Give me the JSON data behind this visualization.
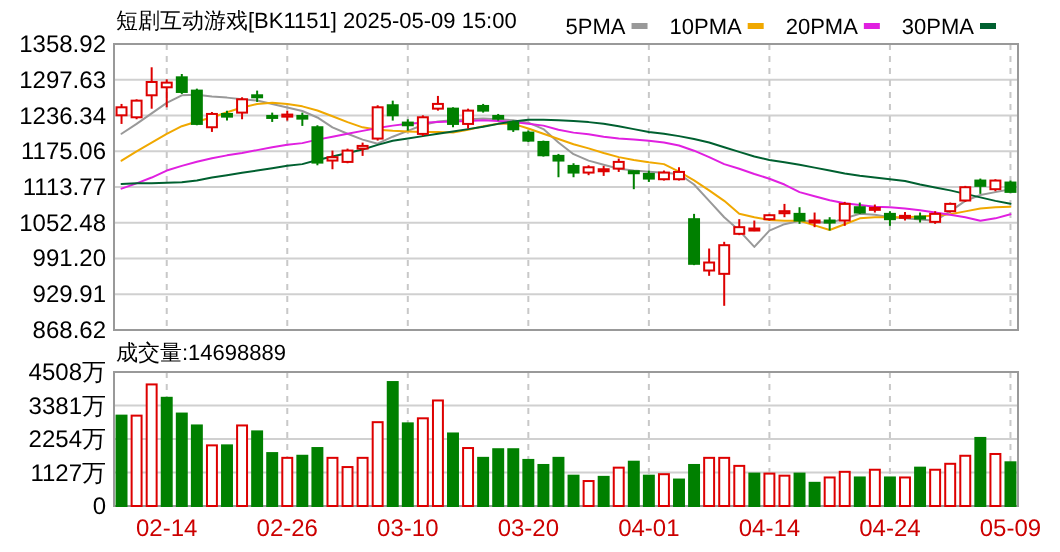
{
  "chart_data": [
    {
      "type": "candlestick",
      "title": "短剧互动游戏[BK1151] 2025-05-09 15:00",
      "legend": "top right",
      "grid": true,
      "tick_labels": "y",
      "categories": [
        null,
        null,
        null,
        null,
        null,
        null,
        null,
        null,
        null,
        null,
        null,
        null,
        null,
        null,
        null,
        null,
        null,
        null,
        null,
        null,
        null,
        null,
        null,
        null,
        null,
        null,
        null,
        null,
        null,
        null,
        null,
        null,
        null,
        null,
        null,
        null,
        null,
        null,
        null,
        null,
        null,
        null,
        null,
        null,
        null,
        null,
        null,
        null,
        null,
        null,
        null,
        null,
        null,
        null,
        null,
        null,
        null,
        null,
        null,
        null
      ],
      "ylim": [
        868.62,
        1358.92
      ],
      "yticks": [
        868.62,
        929.91,
        {
          "value": 991.2,
          "label": "991.20"
        },
        1052.48,
        1113.77,
        1175.06,
        1236.34,
        1297.63,
        1358.92
      ],
      "ohlc": [
        [
          1236.7,
          1256.2,
          1221.9,
          1250.4
        ],
        [
          1233.3,
          1264.1,
          1229.9,
          1261.8
        ],
        [
          1271,
          1319,
          1248,
          1293.8
        ],
        [
          1284.7,
          1298.4,
          1250.4,
          1292.7
        ],
        [
          1301.8,
          1307.5,
          1273.3,
          1276.7
        ],
        [
          1279,
          1282.4,
          1219.6,
          1221.9
        ],
        [
          1216.2,
          1242.4,
          1208.2,
          1239
        ],
        [
          1239,
          1244.7,
          1227.6,
          1234.4
        ],
        [
          1241.3,
          1267.6,
          1229.9,
          1264.1
        ],
        [
          1271,
          1279,
          1259.6,
          1267.6
        ],
        [
          1235.6,
          1241.3,
          1225.3,
          1232.2
        ],
        [
          1234.4,
          1244.7,
          1227.6,
          1237.9
        ],
        [
          1235.6,
          1241.3,
          1218.5,
          1231
        ],
        [
          1216.2,
          1219.6,
          1151,
          1155.6
        ],
        [
          1159.1,
          1176.2,
          1144.2,
          1164.8
        ],
        [
          1156.8,
          1179.6,
          1154.5,
          1176.2
        ],
        [
          1179.6,
          1189.9,
          1167.1,
          1184.2
        ],
        [
          1196.8,
          1253.9,
          1193.3,
          1250.4
        ],
        [
          1253.9,
          1261.8,
          1227.6,
          1236.7
        ],
        [
          1224.2,
          1229.9,
          1210.5,
          1219.6
        ],
        [
          1204.8,
          1236.7,
          1201.3,
          1233.3
        ],
        [
          1248.1,
          1269.9,
          1244.7,
          1256.2
        ],
        [
          1248.1,
          1250.4,
          1216.2,
          1221.9
        ],
        [
          1221.9,
          1248.1,
          1213.9,
          1244.7
        ],
        [
          1252.7,
          1256.2,
          1241.3,
          1244.7
        ],
        [
          1235.6,
          1239,
          1227.6,
          1231
        ],
        [
          1224.2,
          1227.6,
          1208.2,
          1212.7
        ],
        [
          1207,
          1210.5,
          1191,
          1193.3
        ],
        [
          1191,
          1193.3,
          1165.9,
          1168.2
        ],
        [
          1167.1,
          1170.5,
          1130.5,
          1159.1
        ],
        [
          1149.9,
          1154.5,
          1130.5,
          1138.5
        ],
        [
          1138.5,
          1151,
          1134,
          1147.6
        ],
        [
          1140.8,
          1149.9,
          1132.8,
          1144.2
        ],
        [
          1145.3,
          1162.5,
          1139.6,
          1156.8
        ],
        [
          1140.8,
          1142,
          1110,
          1137.4
        ],
        [
          1136.2,
          1142,
          1122.5,
          1128.2
        ],
        [
          1127.1,
          1142,
          1124.8,
          1138.5
        ],
        [
          1127.1,
          1147.6,
          1124.8,
          1139.6
        ],
        [
          1058.6,
          1067.7,
          979.8,
          982.1
        ],
        [
          970.6,
          1008.3,
          961.5,
          984.3
        ],
        [
          964.9,
          1019.8,
          910.1,
          1014
        ],
        [
          1033.5,
          1058.6,
          1031.2,
          1044.9
        ],
        [
          1040.3,
          1056.3,
          1038,
          1042.6
        ],
        [
          1058.6,
          1067.7,
          1056.3,
          1065.4
        ],
        [
          1068.8,
          1084.8,
          1062,
          1072.3
        ],
        [
          1067.7,
          1079.1,
          1050.6,
          1056.3
        ],
        [
          1052.9,
          1070,
          1044.9,
          1056.3
        ],
        [
          1056.3,
          1062,
          1039.2,
          1052.9
        ],
        [
          1056.3,
          1088.3,
          1047.2,
          1084.8
        ],
        [
          1079.1,
          1087.1,
          1067.7,
          1070
        ],
        [
          1074.6,
          1083.7,
          1070,
          1078
        ],
        [
          1067.7,
          1072.3,
          1047.2,
          1058.6
        ],
        [
          1060.9,
          1071.1,
          1056.3,
          1064.3
        ],
        [
          1063.1,
          1070,
          1052.9,
          1059.7
        ],
        [
          1054,
          1072.3,
          1050.6,
          1067.7
        ],
        [
          1072.3,
          1087.1,
          1070,
          1084.8
        ],
        [
          1090.6,
          1115.7,
          1088.3,
          1113.4
        ],
        [
          1124.8,
          1128.2,
          1102,
          1115.7
        ],
        [
          1110,
          1127.1,
          1106.5,
          1124.8
        ],
        [
          1121.4,
          1124.8,
          1104.2,
          1105.4
        ]
      ],
      "colors": [
        "#dd0000",
        "#dd0000",
        "#dd0000",
        "#dd0000",
        "#008000",
        "#008000",
        "#dd0000",
        "#008000",
        "#dd0000",
        "#008000",
        "#008000",
        "#dd0000",
        "#008000",
        "#008000",
        "#dd0000",
        "#dd0000",
        "#dd0000",
        "#dd0000",
        "#008000",
        "#008000",
        "#dd0000",
        "#dd0000",
        "#008000",
        "#dd0000",
        "#008000",
        "#008000",
        "#008000",
        "#008000",
        "#008000",
        "#008000",
        "#008000",
        "#dd0000",
        "#dd0000",
        "#dd0000",
        "#008000",
        "#008000",
        "#dd0000",
        "#dd0000",
        "#008000",
        "#dd0000",
        "#dd0000",
        "#dd0000",
        "#dd0000",
        "#dd0000",
        "#dd0000",
        "#008000",
        "#dd0000",
        "#008000",
        "#dd0000",
        "#008000",
        "#dd0000",
        "#008000",
        "#dd0000",
        "#008000",
        "#dd0000",
        "#dd0000",
        "#dd0000",
        "#008000",
        "#dd0000",
        "#008000"
      ],
      "series": [
        {
          "name": "5PMA",
          "type": "line",
          "color": "#999999",
          "values": [
            1205,
            1222,
            1240,
            1258,
            1271,
            1272,
            1269,
            1267,
            1264,
            1262,
            1256,
            1250,
            1244,
            1233,
            1216,
            1205,
            1195,
            1188,
            1200,
            1210,
            1220,
            1226,
            1228,
            1230,
            1231,
            1230,
            1228,
            1224,
            1213,
            1190,
            1170,
            1159,
            1152,
            1145,
            1142,
            1140,
            1138,
            1136,
            1118,
            1090,
            1062,
            1039,
            1011,
            1039,
            1050,
            1056,
            1054,
            1052,
            1060,
            1068,
            1066,
            1062,
            1060,
            1058,
            1056,
            1072,
            1090,
            1100,
            1105,
            1110
          ]
        },
        {
          "name": "10PMA",
          "type": "line",
          "color": "#f0a800",
          "values": [
            1159,
            1175,
            1190,
            1205,
            1218,
            1226,
            1233,
            1242,
            1250,
            1256,
            1258,
            1256,
            1252,
            1245,
            1235,
            1225,
            1216,
            1212,
            1210,
            1209,
            1208,
            1208,
            1207,
            1212,
            1218,
            1222,
            1222,
            1214,
            1205,
            1196,
            1187,
            1180,
            1172,
            1165,
            1160,
            1156,
            1153,
            1140,
            1125,
            1108,
            1090,
            1068,
            1062,
            1057,
            1056,
            1056,
            1048,
            1040,
            1050,
            1060,
            1062,
            1062,
            1062,
            1063,
            1065,
            1067,
            1072,
            1077,
            1079,
            1080
          ]
        },
        {
          "name": "20PMA",
          "type": "line",
          "color": "#e020e0",
          "values": [
            1111,
            1120,
            1130,
            1142,
            1150,
            1157,
            1163,
            1168,
            1172,
            1177,
            1182,
            1186,
            1189,
            1195,
            1200,
            1205,
            1210,
            1215,
            1219,
            1222,
            1224,
            1225,
            1226,
            1227,
            1228,
            1227,
            1225,
            1222,
            1219,
            1212,
            1207,
            1204,
            1200,
            1197,
            1195,
            1193,
            1190,
            1185,
            1176,
            1165,
            1153,
            1145,
            1136,
            1128,
            1118,
            1105,
            1098,
            1091,
            1086,
            1083,
            1080,
            1079,
            1077,
            1074,
            1070,
            1066,
            1062,
            1056,
            1060,
            1067
          ]
        },
        {
          "name": "30PMA",
          "type": "line",
          "color": "#006030",
          "values": [
            1119,
            1120,
            1120,
            1121,
            1122,
            1125,
            1130,
            1134,
            1138,
            1142,
            1146,
            1150,
            1153,
            1160,
            1166,
            1172,
            1178,
            1186,
            1193,
            1197,
            1201,
            1205,
            1209,
            1213,
            1217,
            1222,
            1226,
            1229,
            1229,
            1228,
            1227,
            1225,
            1222,
            1218,
            1213,
            1208,
            1205,
            1201,
            1196,
            1190,
            1182,
            1174,
            1166,
            1160,
            1156,
            1152,
            1147,
            1142,
            1137,
            1133,
            1130,
            1127,
            1124,
            1118,
            1113,
            1108,
            1102,
            1096,
            1090,
            1085
          ]
        }
      ]
    },
    {
      "type": "bar",
      "title": "成交量:14698889",
      "grid": true,
      "categories": [
        null,
        null,
        null,
        "02-14",
        null,
        null,
        null,
        null,
        null,
        null,
        null,
        "02-26",
        null,
        null,
        null,
        null,
        null,
        null,
        null,
        "03-10",
        null,
        null,
        null,
        null,
        null,
        null,
        null,
        "03-20",
        null,
        null,
        null,
        null,
        null,
        null,
        null,
        "04-01",
        null,
        null,
        null,
        null,
        null,
        null,
        null,
        "04-14",
        null,
        null,
        null,
        null,
        null,
        null,
        null,
        "04-24",
        null,
        null,
        null,
        null,
        null,
        null,
        null,
        "05-09"
      ],
      "ylim": [
        0,
        4508
      ],
      "yticks": [
        0,
        {
          "value": 1127,
          "label": "1127万"
        },
        {
          "value": 2254,
          "label": "2254万"
        },
        {
          "value": 3381,
          "label": "3381万"
        },
        {
          "value": 4508,
          "label": "4508万"
        }
      ],
      "values": [
        3040,
        3040,
        4090,
        3640,
        3110,
        2710,
        2040,
        2040,
        2710,
        2510,
        1780,
        1620,
        1690,
        1950,
        1620,
        1310,
        1620,
        2820,
        4170,
        2780,
        2950,
        3550,
        2440,
        1950,
        1620,
        1910,
        1910,
        1550,
        1380,
        1620,
        1020,
        840,
        980,
        1290,
        1490,
        1020,
        1070,
        890,
        1380,
        1620,
        1620,
        1350,
        1090,
        1090,
        1020,
        1090,
        780,
        960,
        1150,
        960,
        1220,
        960,
        960,
        1290,
        1220,
        1420,
        1690,
        2290,
        1750,
        1470
      ],
      "colors": [
        "#008000",
        "#dd0000",
        "#dd0000",
        "#008000",
        "#008000",
        "#008000",
        "#dd0000",
        "#008000",
        "#dd0000",
        "#008000",
        "#008000",
        "#dd0000",
        "#008000",
        "#008000",
        "#dd0000",
        "#dd0000",
        "#dd0000",
        "#dd0000",
        "#008000",
        "#008000",
        "#dd0000",
        "#dd0000",
        "#008000",
        "#dd0000",
        "#008000",
        "#008000",
        "#008000",
        "#008000",
        "#008000",
        "#008000",
        "#008000",
        "#dd0000",
        "#008000",
        "#dd0000",
        "#008000",
        "#008000",
        "#dd0000",
        "#008000",
        "#008000",
        "#dd0000",
        "#dd0000",
        "#dd0000",
        "#008000",
        "#dd0000",
        "#dd0000",
        "#008000",
        "#008000",
        "#dd0000",
        "#dd0000",
        "#008000",
        "#dd0000",
        "#008000",
        "#dd0000",
        "#008000",
        "#dd0000",
        "#dd0000",
        "#dd0000",
        "#008000",
        "#dd0000",
        "#008000"
      ]
    }
  ]
}
